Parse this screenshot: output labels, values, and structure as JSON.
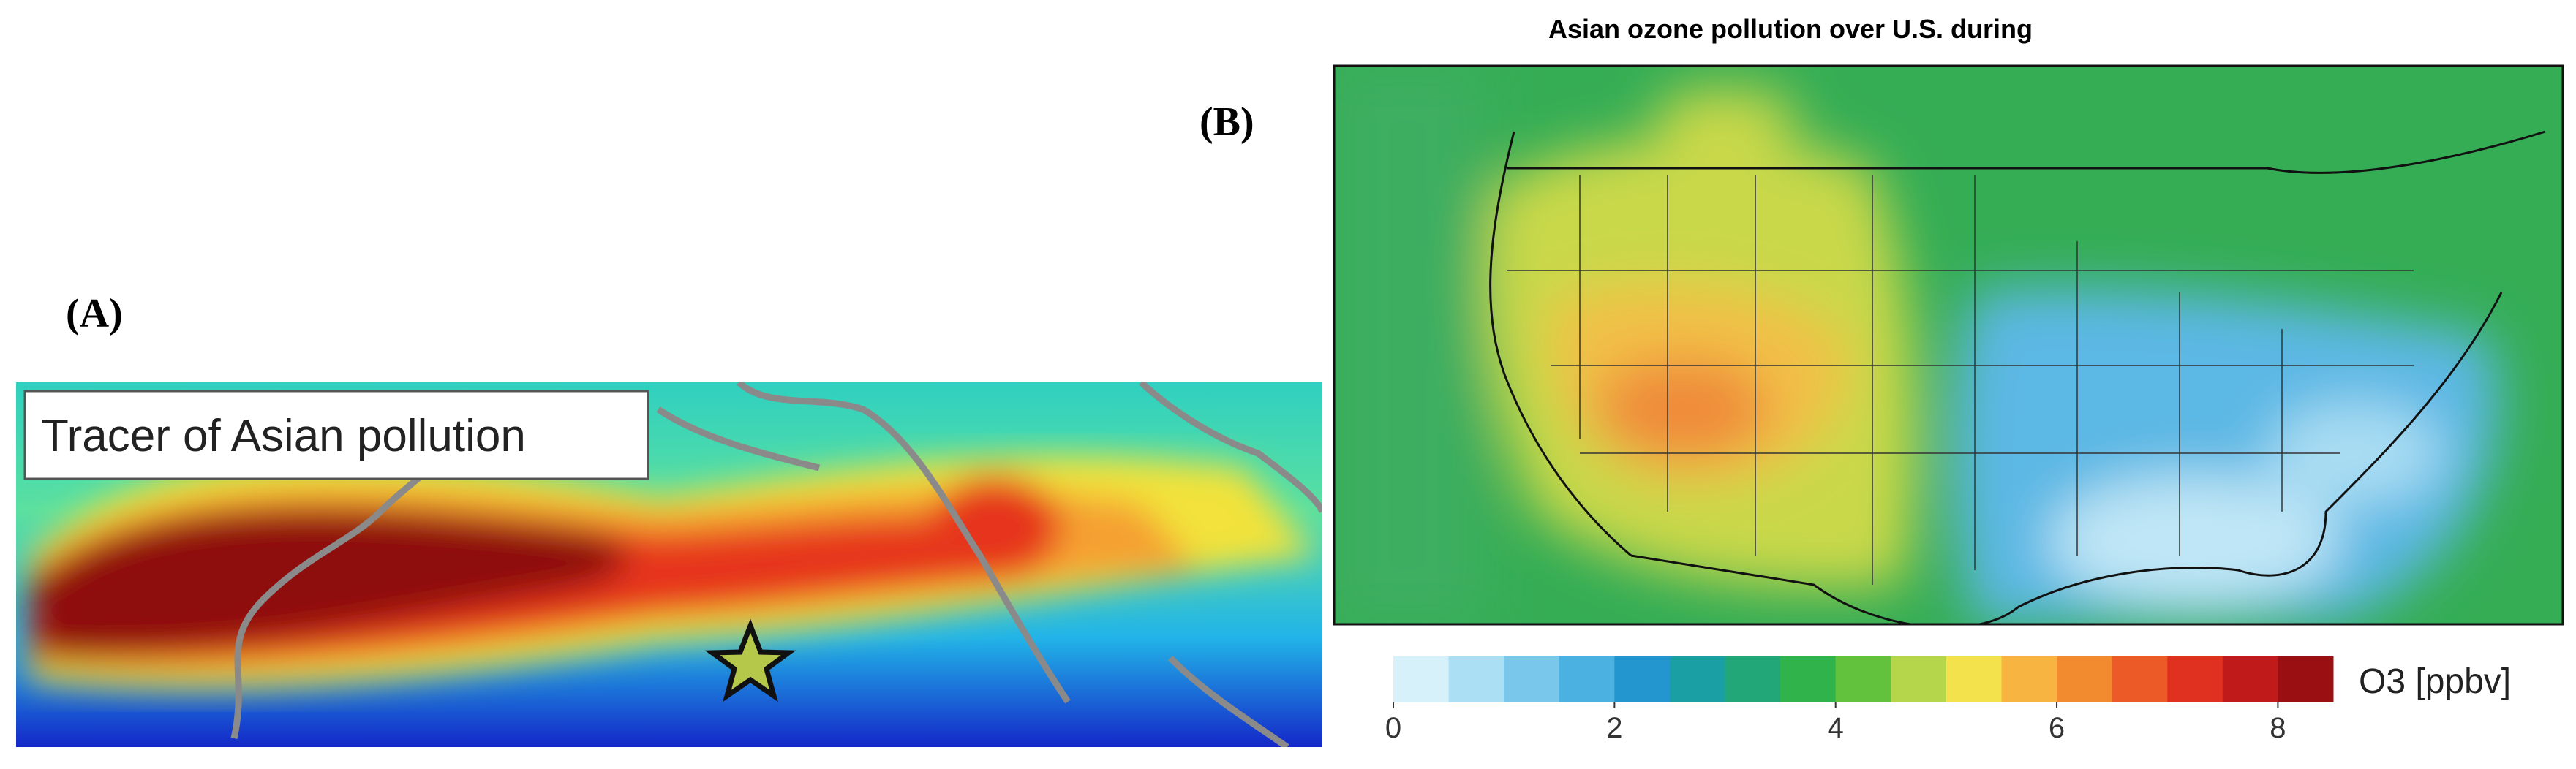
{
  "panel_a": {
    "label": "(A)",
    "legend_box": "Tracer of Asian pollution"
  },
  "panel_b": {
    "label": "(B)",
    "title": "Asian ozone pollution over U.S. during",
    "colorbar": {
      "label": "O3 [ppbv]",
      "clim": [
        0,
        8.5
      ],
      "ticks": [
        0,
        2,
        4,
        6,
        8
      ],
      "colors": [
        "#d6f1fa",
        "#abdff4",
        "#79c8ec",
        "#4bb1e1",
        "#2496cf",
        "#1aa0a4",
        "#22a878",
        "#2fb34a",
        "#62c23e",
        "#b5d64a",
        "#f3e24c",
        "#f7b441",
        "#f28a30",
        "#ec5a27",
        "#e0301f",
        "#c01a1a",
        "#9a0f12"
      ]
    }
  }
}
